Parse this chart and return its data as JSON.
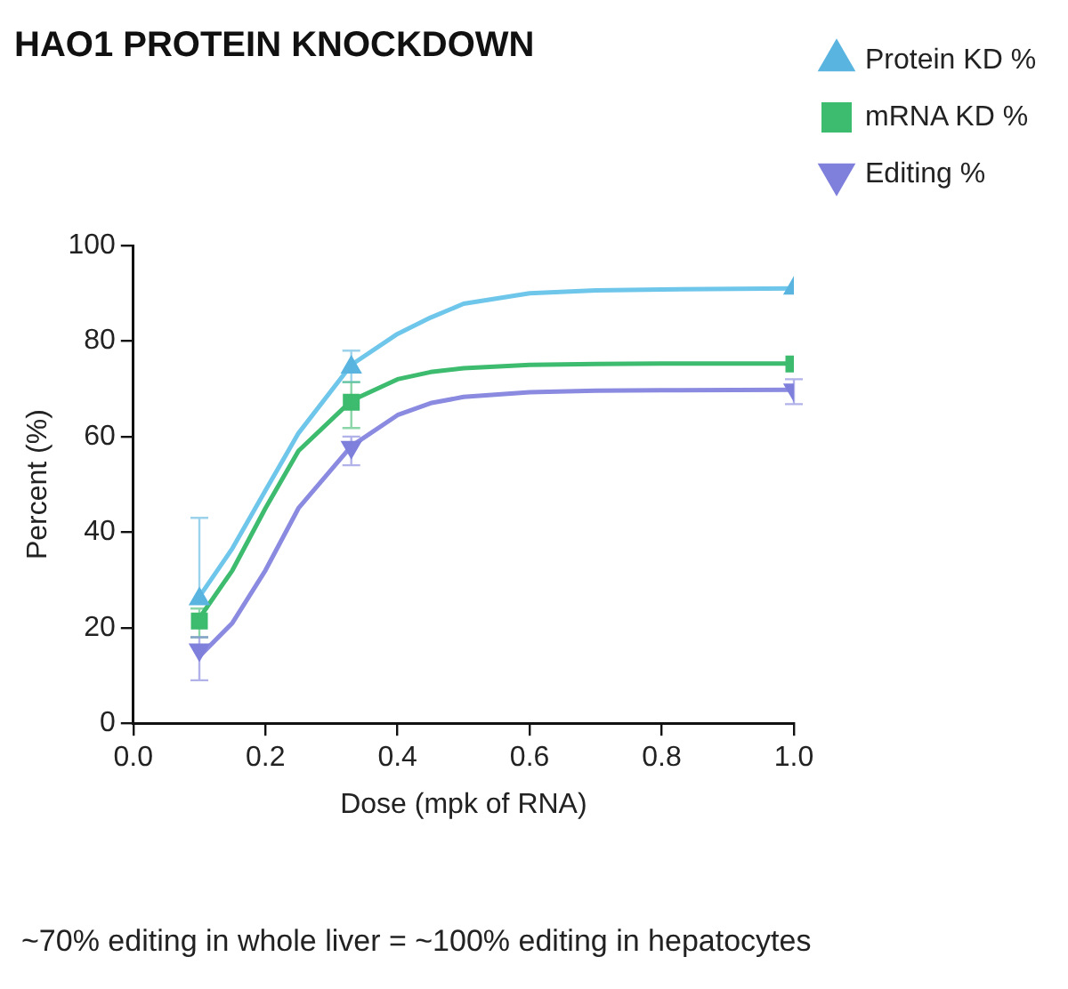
{
  "chart_data": {
    "type": "scatter",
    "title": "HAO1 PROTEIN KNOCKDOWN",
    "xlabel": "Dose (mpk of RNA)",
    "ylabel": "Percent (%)",
    "x": [
      0.1,
      0.33,
      1.0
    ],
    "series": [
      {
        "name": "Protein KD %",
        "color": "#5ab4e0",
        "marker": "triangle",
        "values": [
          26,
          74.5,
          91
        ],
        "errors": [
          [
            25,
            43
          ],
          [
            71.4,
            78
          ],
          null
        ]
      },
      {
        "name": "mRNA KD %",
        "color": "#3dbb6e",
        "marker": "square",
        "values": [
          21.4,
          67.2,
          75.2
        ],
        "errors": [
          [
            18,
            24
          ],
          [
            61.8,
            71.4
          ],
          null
        ]
      },
      {
        "name": "Editing %",
        "color": "#7f7fdc",
        "marker": "triangle-down",
        "values": [
          15.4,
          57.8,
          69.8
        ],
        "errors": [
          [
            9,
            18
          ],
          [
            54,
            60
          ],
          [
            66.8,
            72
          ]
        ]
      },
      {
        "type": "line",
        "color": "#6ec6ea",
        "marker": "none",
        "x": [
          0.1,
          0.15,
          0.2,
          0.25,
          0.33,
          0.4,
          0.45,
          0.5,
          0.6,
          0.7,
          0.8,
          1.0
        ],
        "values": [
          26.5,
          36.6,
          48.7,
          60.7,
          75,
          81.5,
          84.9,
          87.8,
          90,
          90.6,
          90.8,
          91
        ]
      },
      {
        "type": "line",
        "color": "#3dbb6e",
        "marker": "none",
        "x": [
          0.1,
          0.15,
          0.2,
          0.25,
          0.33,
          0.4,
          0.45,
          0.5,
          0.6,
          0.7,
          0.8,
          1.0
        ],
        "values": [
          22,
          32,
          45,
          57,
          67.5,
          72,
          73.5,
          74.3,
          75,
          75.2,
          75.3,
          75.3
        ]
      },
      {
        "type": "line",
        "color": "#8a8ae0",
        "marker": "none",
        "x": [
          0.1,
          0.15,
          0.2,
          0.25,
          0.33,
          0.4,
          0.45,
          0.5,
          0.6,
          0.7,
          0.8,
          1.0
        ],
        "values": [
          14,
          21,
          32,
          45,
          58,
          64.5,
          67,
          68.3,
          69.3,
          69.6,
          69.7,
          69.8
        ]
      }
    ],
    "xlim": [
      0,
      1
    ],
    "xticks": [
      {
        "value": 0,
        "label": "0.0"
      },
      0.2,
      0.4,
      0.6,
      0.8,
      {
        "value": 1,
        "label": "1.0"
      }
    ],
    "ylim": [
      0,
      100
    ],
    "yticks": [
      0,
      20,
      40,
      60,
      80,
      100
    ],
    "grid": false,
    "legend": "top right",
    "annotations": [
      "~70% editing in whole liver = ~100% editing in hepatocytes"
    ]
  }
}
